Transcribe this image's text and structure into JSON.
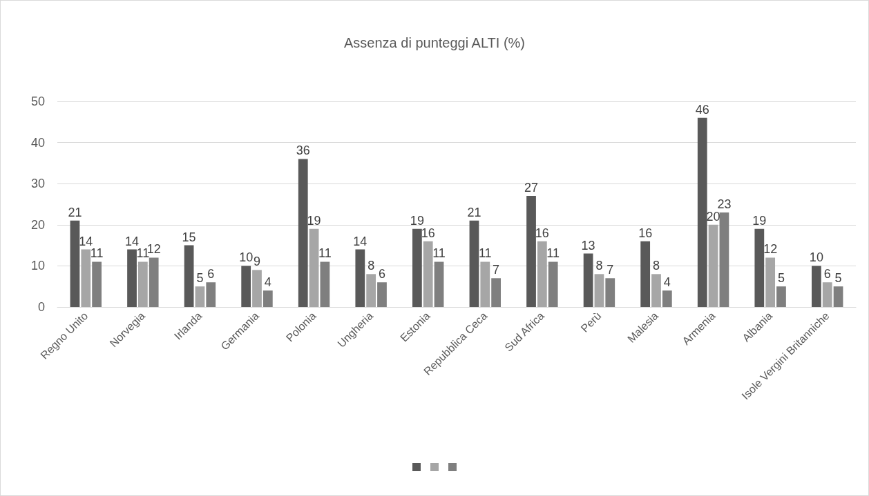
{
  "chart_data": {
    "type": "bar",
    "title": "Assenza di punteggi ALTI (%)",
    "categories": [
      "Regno Unito",
      "Norvegia",
      "Irlanda",
      "Germania",
      "Polonia",
      "Ungheria",
      "Estonia",
      "Repubblica Ceca",
      "Sud Africa",
      "Perù",
      "Malesia",
      "Armenia",
      "Albania",
      "Isole Vergini Britanniche"
    ],
    "series": [
      {
        "color": "#595959",
        "values": [
          21,
          14,
          15,
          10,
          36,
          14,
          19,
          21,
          27,
          13,
          16,
          46,
          19,
          10
        ]
      },
      {
        "color": "#a6a6a6",
        "values": [
          14,
          11,
          5,
          9,
          19,
          8,
          16,
          11,
          16,
          8,
          8,
          20,
          12,
          6
        ]
      },
      {
        "color": "#7f7f7f",
        "values": [
          11,
          12,
          6,
          4,
          11,
          6,
          11,
          7,
          11,
          7,
          4,
          23,
          5,
          5
        ]
      }
    ],
    "ylim": [
      0,
      50
    ],
    "yticks": [
      0,
      10,
      20,
      30,
      40,
      50
    ],
    "grid": "y",
    "data_labels": true
  }
}
